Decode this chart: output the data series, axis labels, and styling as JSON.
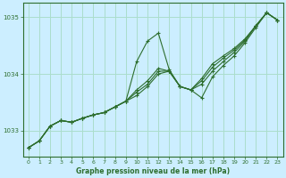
{
  "title": "Graphe pression niveau de la mer (hPa)",
  "bg_color": "#cceeff",
  "grid_color": "#aaddcc",
  "line_color": "#2d6e2d",
  "marker_color": "#2d6e2d",
  "xlim": [
    -0.5,
    23.5
  ],
  "ylim": [
    1032.55,
    1035.25
  ],
  "yticks": [
    1033,
    1034,
    1035
  ],
  "xticks": [
    0,
    1,
    2,
    3,
    4,
    5,
    6,
    7,
    8,
    9,
    10,
    11,
    12,
    13,
    14,
    15,
    16,
    17,
    18,
    19,
    20,
    21,
    22,
    23
  ],
  "series": [
    [
      1032.7,
      1032.82,
      1033.08,
      1033.18,
      1033.15,
      1033.22,
      1033.28,
      1033.32,
      1033.42,
      1033.52,
      1034.22,
      1034.58,
      1034.72,
      1034.08,
      1033.78,
      1033.72,
      1033.58,
      1033.95,
      1034.15,
      1034.32,
      1034.55,
      1034.82,
      1035.08,
      1034.95
    ],
    [
      1032.7,
      1032.82,
      1033.08,
      1033.18,
      1033.15,
      1033.22,
      1033.28,
      1033.32,
      1033.42,
      1033.52,
      1033.72,
      1033.88,
      1034.1,
      1034.05,
      1033.78,
      1033.72,
      1033.82,
      1034.05,
      1034.22,
      1034.38,
      1034.58,
      1034.85,
      1035.08,
      1034.95
    ],
    [
      1032.7,
      1032.82,
      1033.08,
      1033.18,
      1033.15,
      1033.22,
      1033.28,
      1033.32,
      1033.42,
      1033.52,
      1033.68,
      1033.82,
      1034.05,
      1034.05,
      1033.78,
      1033.72,
      1033.88,
      1034.12,
      1034.28,
      1034.42,
      1034.6,
      1034.85,
      1035.08,
      1034.95
    ],
    [
      1032.7,
      1032.82,
      1033.08,
      1033.18,
      1033.15,
      1033.22,
      1033.28,
      1033.32,
      1033.42,
      1033.52,
      1033.62,
      1033.78,
      1034.0,
      1034.05,
      1033.78,
      1033.72,
      1033.92,
      1034.18,
      1034.32,
      1034.45,
      1034.62,
      1034.85,
      1035.08,
      1034.95
    ]
  ]
}
